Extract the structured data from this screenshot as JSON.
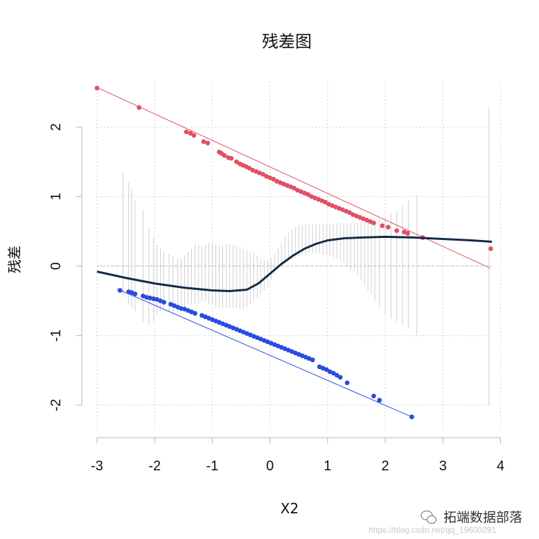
{
  "chart_data": {
    "type": "scatter",
    "title": "残差图",
    "xlabel": "X2",
    "ylabel": "残差",
    "xlim": [
      -3,
      3.85
    ],
    "ylim": [
      -2.35,
      2.65
    ],
    "xticks": [
      "-3",
      "-2",
      "-1",
      "0",
      "1",
      "2",
      "3",
      "4"
    ],
    "yticks": [
      "-2",
      "-1",
      "0",
      "1",
      "2"
    ],
    "grid": true,
    "reference_line_y": 0,
    "series": [
      {
        "color": "#E05066",
        "fit_line": [
          [
            -3.0,
            2.57
          ],
          [
            3.82,
            -0.03
          ]
        ],
        "x": [
          -3.0,
          -2.27,
          -1.45,
          -1.38,
          -1.32,
          -1.15,
          -1.08,
          -0.88,
          -0.84,
          -0.79,
          -0.72,
          -0.67,
          -0.58,
          -0.52,
          -0.47,
          -0.41,
          -0.36,
          -0.3,
          -0.24,
          -0.18,
          -0.12,
          -0.06,
          0.0,
          0.06,
          0.12,
          0.18,
          0.24,
          0.3,
          0.36,
          0.42,
          0.48,
          0.54,
          0.6,
          0.66,
          0.72,
          0.78,
          0.84,
          0.9,
          0.96,
          1.02,
          1.08,
          1.14,
          1.2,
          1.26,
          1.32,
          1.38,
          1.44,
          1.5,
          1.56,
          1.62,
          1.68,
          1.74,
          1.8,
          1.95,
          2.05,
          2.2,
          2.33,
          2.39,
          2.65,
          3.83
        ],
        "y": [
          2.56,
          2.28,
          1.93,
          1.91,
          1.88,
          1.79,
          1.77,
          1.64,
          1.62,
          1.59,
          1.56,
          1.55,
          1.5,
          1.47,
          1.45,
          1.43,
          1.41,
          1.38,
          1.36,
          1.34,
          1.32,
          1.29,
          1.27,
          1.25,
          1.22,
          1.2,
          1.18,
          1.16,
          1.14,
          1.12,
          1.09,
          1.07,
          1.05,
          1.03,
          1.0,
          0.98,
          0.96,
          0.94,
          0.92,
          0.89,
          0.87,
          0.85,
          0.83,
          0.81,
          0.79,
          0.77,
          0.74,
          0.72,
          0.7,
          0.68,
          0.66,
          0.64,
          0.62,
          0.58,
          0.56,
          0.51,
          0.49,
          0.47,
          0.41,
          0.25
        ]
      },
      {
        "color": "#2A4BE0",
        "fit_line": [
          [
            -2.65,
            -0.33
          ],
          [
            2.46,
            -2.17
          ]
        ],
        "x": [
          -2.6,
          -2.45,
          -2.4,
          -2.34,
          -2.2,
          -2.14,
          -2.08,
          -2.02,
          -1.96,
          -1.9,
          -1.84,
          -1.72,
          -1.66,
          -1.6,
          -1.54,
          -1.48,
          -1.42,
          -1.36,
          -1.3,
          -1.18,
          -1.12,
          -1.06,
          -1.0,
          -0.94,
          -0.88,
          -0.82,
          -0.76,
          -0.7,
          -0.64,
          -0.58,
          -0.52,
          -0.46,
          -0.4,
          -0.34,
          -0.28,
          -0.22,
          -0.16,
          -0.1,
          -0.04,
          0.02,
          0.08,
          0.14,
          0.2,
          0.26,
          0.32,
          0.38,
          0.44,
          0.5,
          0.56,
          0.62,
          0.68,
          0.74,
          0.86,
          0.92,
          0.98,
          1.04,
          1.1,
          1.16,
          1.22,
          1.34,
          1.8,
          1.9,
          2.46
        ],
        "y": [
          -0.35,
          -0.37,
          -0.38,
          -0.4,
          -0.43,
          -0.45,
          -0.46,
          -0.47,
          -0.48,
          -0.5,
          -0.52,
          -0.55,
          -0.57,
          -0.59,
          -0.61,
          -0.62,
          -0.64,
          -0.66,
          -0.68,
          -0.71,
          -0.73,
          -0.75,
          -0.77,
          -0.79,
          -0.81,
          -0.83,
          -0.85,
          -0.87,
          -0.89,
          -0.91,
          -0.93,
          -0.95,
          -0.97,
          -0.99,
          -1.01,
          -1.03,
          -1.05,
          -1.07,
          -1.09,
          -1.11,
          -1.13,
          -1.15,
          -1.17,
          -1.19,
          -1.21,
          -1.23,
          -1.25,
          -1.27,
          -1.29,
          -1.31,
          -1.33,
          -1.35,
          -1.45,
          -1.47,
          -1.49,
          -1.52,
          -1.54,
          -1.57,
          -1.6,
          -1.68,
          -1.87,
          -1.93,
          -2.17
        ]
      },
      {
        "color": "#152A44",
        "smooth": {
          "x": [
            -3.0,
            -2.5,
            -2.0,
            -1.5,
            -1.0,
            -0.7,
            -0.4,
            -0.2,
            0.0,
            0.2,
            0.4,
            0.6,
            0.8,
            1.0,
            1.3,
            1.6,
            2.0,
            2.5,
            3.0,
            3.5,
            3.85
          ],
          "y": [
            -0.08,
            -0.17,
            -0.25,
            -0.31,
            -0.35,
            -0.36,
            -0.34,
            -0.25,
            -0.11,
            0.03,
            0.15,
            0.25,
            0.32,
            0.37,
            0.4,
            0.41,
            0.42,
            0.41,
            0.39,
            0.37,
            0.35
          ]
        }
      }
    ],
    "bands": {
      "color": "#cfcfcf",
      "x": [
        -2.55,
        -2.45,
        -2.4,
        -2.34,
        -2.2,
        -2.1,
        -2.02,
        -1.96,
        -1.9,
        -1.84,
        -1.75,
        -1.68,
        -1.6,
        -1.54,
        -1.48,
        -1.42,
        -1.36,
        -1.3,
        -1.24,
        -1.18,
        -1.12,
        -1.06,
        -1.0,
        -0.94,
        -0.88,
        -0.82,
        -0.76,
        -0.7,
        -0.64,
        -0.58,
        -0.52,
        -0.46,
        -0.4,
        -0.34,
        -0.28,
        -0.22,
        -0.16,
        -0.1,
        -0.04,
        0.02,
        0.08,
        0.14,
        0.2,
        0.26,
        0.32,
        0.38,
        0.44,
        0.5,
        0.56,
        0.62,
        0.68,
        0.74,
        0.8,
        0.86,
        0.92,
        0.98,
        1.04,
        1.1,
        1.16,
        1.22,
        1.28,
        1.34,
        1.4,
        1.46,
        1.52,
        1.58,
        1.64,
        1.7,
        1.76,
        1.82,
        1.9,
        2.0,
        2.1,
        2.2,
        2.3,
        2.4,
        2.55,
        3.8
      ],
      "low": [
        -0.45,
        -0.55,
        -0.6,
        -0.65,
        -0.8,
        -0.85,
        -0.8,
        -0.7,
        -0.65,
        -0.6,
        -0.65,
        -0.7,
        -0.7,
        -0.65,
        -0.6,
        -0.55,
        -0.55,
        -0.55,
        -0.55,
        -0.5,
        -0.5,
        -0.55,
        -0.55,
        -0.6,
        -0.6,
        -0.6,
        -0.6,
        -0.6,
        -0.6,
        -0.6,
        -0.62,
        -0.62,
        -0.6,
        -0.55,
        -0.5,
        -0.45,
        -0.4,
        -0.35,
        -0.3,
        -0.2,
        -0.12,
        -0.05,
        0.0,
        0.05,
        0.08,
        0.1,
        0.12,
        0.14,
        0.16,
        0.17,
        0.18,
        0.18,
        0.18,
        0.18,
        0.17,
        0.16,
        0.15,
        0.12,
        0.1,
        0.08,
        0.05,
        0.0,
        -0.05,
        -0.08,
        -0.12,
        -0.2,
        -0.28,
        -0.35,
        -0.4,
        -0.5,
        -0.6,
        -0.72,
        -0.75,
        -0.8,
        -0.85,
        -0.9,
        -0.98,
        -2.0
      ],
      "high": [
        1.35,
        1.2,
        1.1,
        0.95,
        0.8,
        0.55,
        0.4,
        0.3,
        0.25,
        0.2,
        0.18,
        0.15,
        0.12,
        0.1,
        0.15,
        0.2,
        0.25,
        0.3,
        0.3,
        0.28,
        0.3,
        0.33,
        0.33,
        0.3,
        0.3,
        0.3,
        0.32,
        0.32,
        0.3,
        0.3,
        0.28,
        0.25,
        0.22,
        0.2,
        0.18,
        0.15,
        0.1,
        0.08,
        0.08,
        0.12,
        0.18,
        0.25,
        0.33,
        0.42,
        0.48,
        0.52,
        0.55,
        0.58,
        0.6,
        0.6,
        0.6,
        0.6,
        0.6,
        0.6,
        0.6,
        0.6,
        0.6,
        0.62,
        0.62,
        0.62,
        0.62,
        0.62,
        0.62,
        0.62,
        0.62,
        0.63,
        0.63,
        0.63,
        0.63,
        0.65,
        0.68,
        0.72,
        0.75,
        0.8,
        0.88,
        0.95,
        1.02,
        2.28
      ]
    }
  },
  "watermark": {
    "name": "拓端数据部落",
    "url": "https://blog.csdn.net/qq_19600291"
  }
}
